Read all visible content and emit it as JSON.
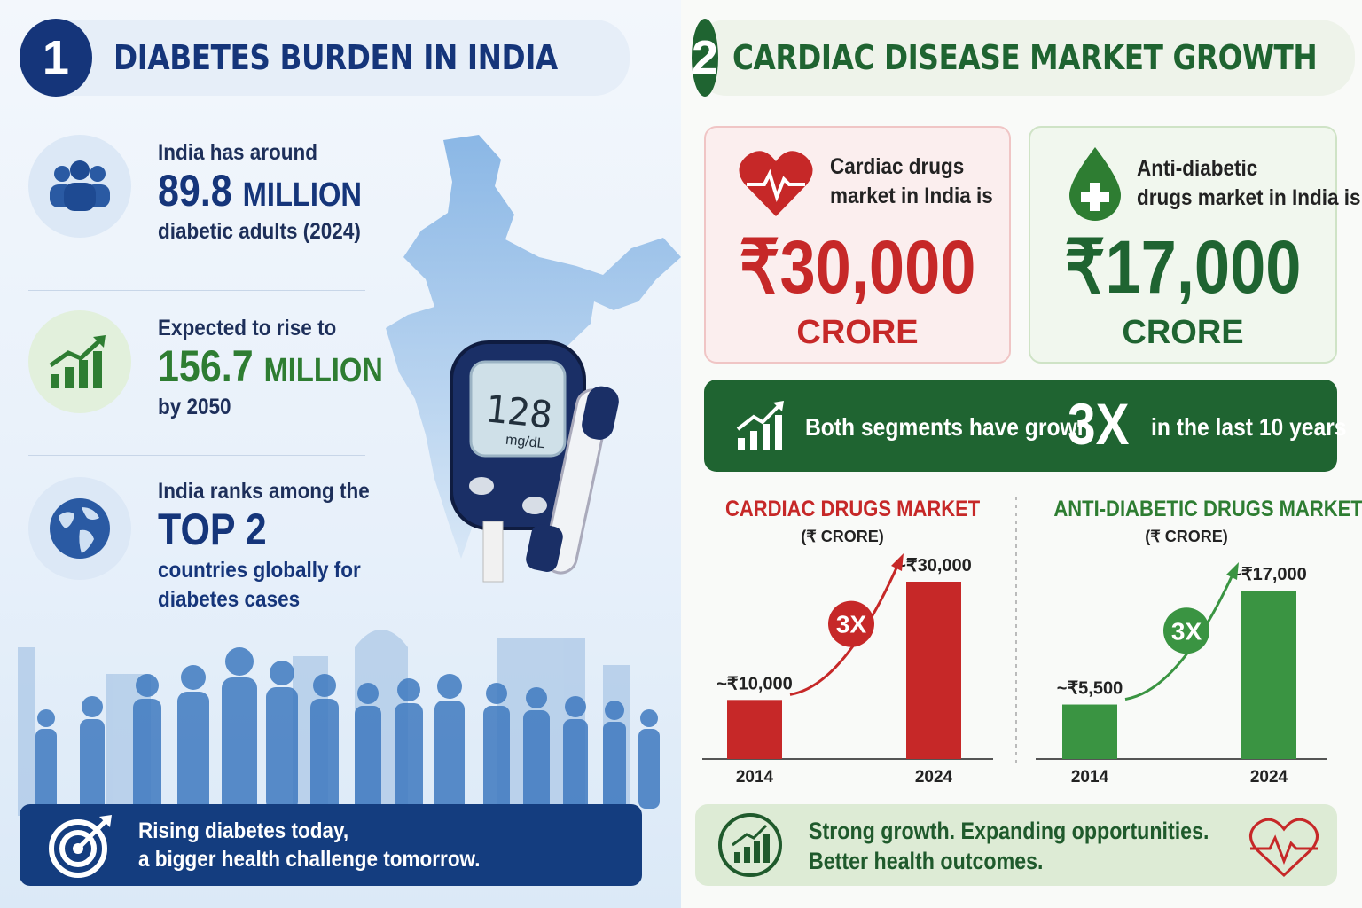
{
  "left": {
    "number": "1",
    "title": "DIABETES BURDEN IN INDIA",
    "stats": [
      {
        "pre": "India has around",
        "big": "89.8",
        "unit": "MILLION",
        "post": "diabetic adults (2024)"
      },
      {
        "pre": "Expected to rise to",
        "big": "156.7",
        "unit": "MILLION",
        "post": "by 2050"
      },
      {
        "pre": "India ranks among the",
        "big": "TOP 2",
        "unit": "",
        "post": "countries globally for",
        "post2": "diabetes cases"
      }
    ],
    "meter_value": "128",
    "meter_unit": "mg/dL",
    "banner_line1": "Rising diabetes today,",
    "banner_line2": "a bigger health challenge tomorrow.",
    "colors": {
      "navy": "#15357a",
      "green": "#2e7d32",
      "banner": "#143d7f"
    }
  },
  "right": {
    "number": "2",
    "title": "CARDIAC DISEASE MARKET GROWTH",
    "cardiac_card": {
      "label1": "Cardiac drugs",
      "label2": "market in India is",
      "amount": "₹30,000",
      "unit": "CRORE"
    },
    "diabetic_card": {
      "label1": "Anti-diabetic",
      "label2": "drugs market in India is",
      "amount": "₹17,000",
      "unit": "CRORE"
    },
    "growth": {
      "text1": "Both segments have grown",
      "multiplier": "3X",
      "text2": "in the last 10 years"
    },
    "banner_line1": "Strong growth. Expanding opportunities.",
    "banner_line2": "Better health outcomes.",
    "colors": {
      "red": "#c62828",
      "green": "#2e7d32",
      "dark_green": "#1f6431"
    }
  },
  "chart_data": [
    {
      "type": "bar",
      "title": "CARDIAC DRUGS MARKET",
      "subtitle": "(₹ CRORE)",
      "categories": [
        "2014",
        "2024"
      ],
      "values": [
        10000,
        30000
      ],
      "value_labels": [
        "~₹10,000",
        "~₹30,000"
      ],
      "annotation": "3X",
      "color": "#c62828"
    },
    {
      "type": "bar",
      "title": "ANTI-DIABETIC DRUGS MARKET",
      "subtitle": "(₹ CRORE)",
      "categories": [
        "2014",
        "2024"
      ],
      "values": [
        5500,
        17000
      ],
      "value_labels": [
        "~₹5,500",
        "~₹17,000"
      ],
      "annotation": "3X",
      "color": "#3a9442"
    }
  ]
}
